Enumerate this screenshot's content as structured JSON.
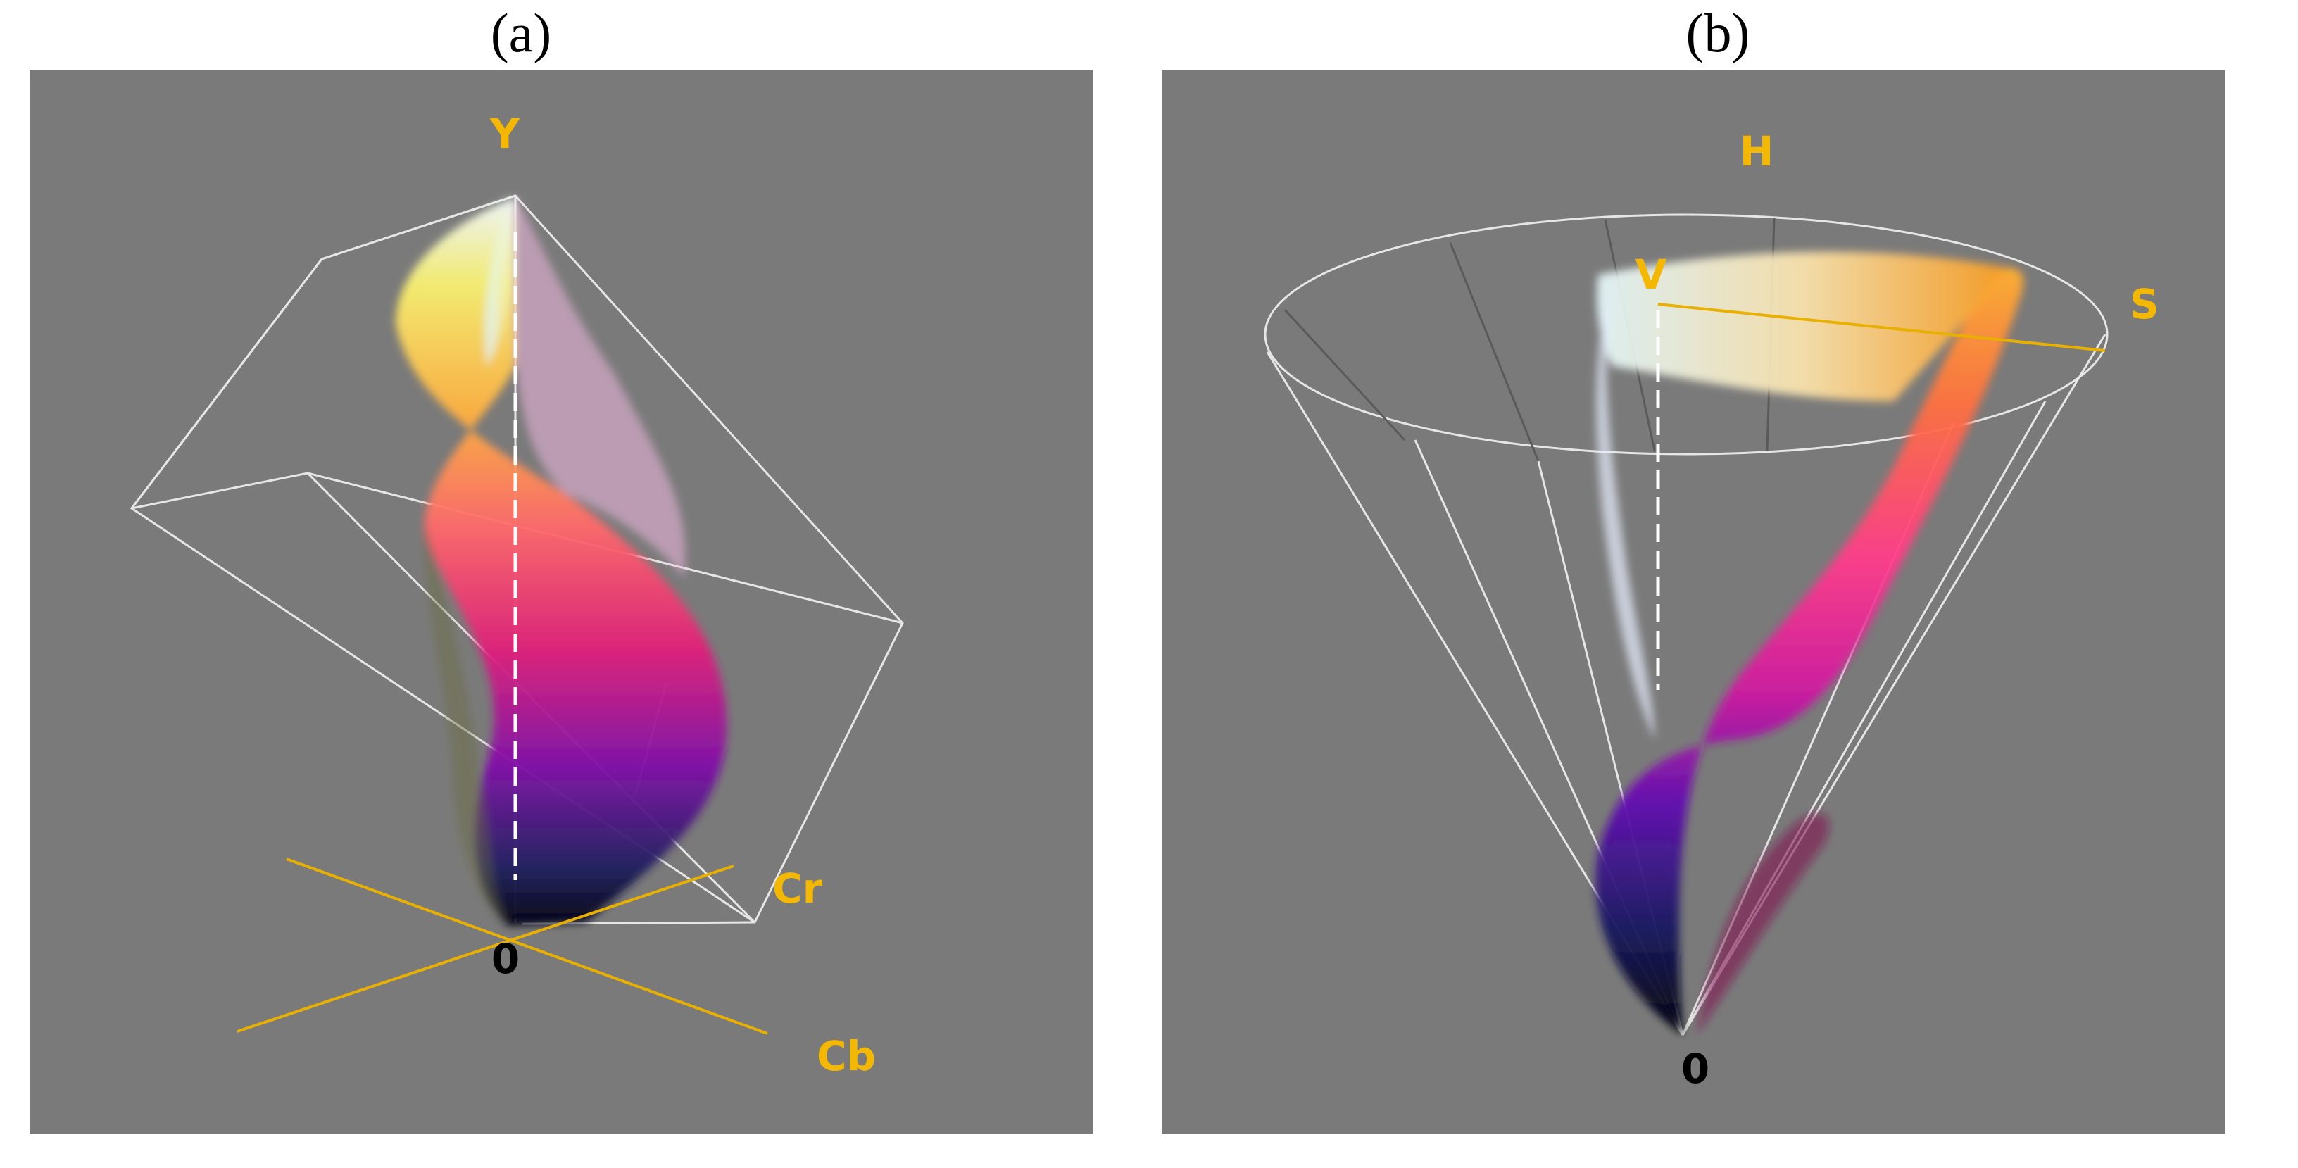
{
  "captions": {
    "a": "(a)",
    "b": "(b)"
  },
  "panel_a": {
    "axis_y": "Y",
    "axis_cr": "Cr",
    "axis_cb": "Cb",
    "origin": "0"
  },
  "panel_b": {
    "axis_h": "H",
    "axis_v": "V",
    "axis_s": "S",
    "origin": "0"
  },
  "colors": {
    "background": "#7a7a7a",
    "axis_label": "#f5b800",
    "wireframe": "#e6e6e6",
    "origin_label": "#000000"
  }
}
